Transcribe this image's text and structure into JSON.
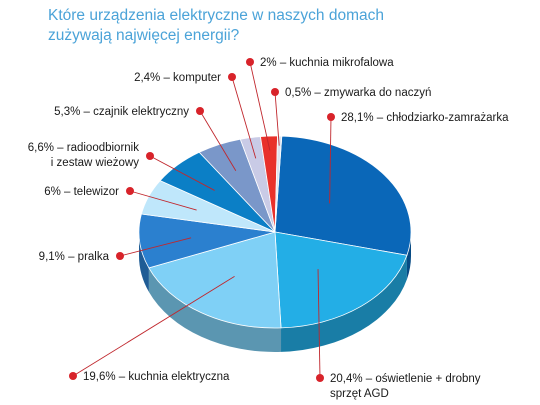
{
  "chart_data": {
    "type": "pie",
    "title_lines": [
      "Które urządzenia elektryczne w naszych domach",
      "zużywają najwięcej energii?"
    ],
    "slices": [
      {
        "value": 28.1,
        "unit": "%",
        "label": "chłodziarko-zamrażarka",
        "text": "28,1% – chłodziarko-zamrażarka",
        "color": "#0a67b8"
      },
      {
        "value": 20.4,
        "unit": "%",
        "label": "oświetlenie + drobny sprzęt AGD",
        "text": "20,4% – oświetlenie + drobny sprzęt AGD",
        "color": "#23aee6"
      },
      {
        "value": 19.6,
        "unit": "%",
        "label": "kuchnia elektryczna",
        "text": "19,6% – kuchnia elektryczna",
        "color": "#7fd0f6"
      },
      {
        "value": 9.1,
        "unit": "%",
        "label": "pralka",
        "text": "9,1% – pralka",
        "color": "#2b80cf"
      },
      {
        "value": 6,
        "unit": "%",
        "label": "telewizor",
        "text": "6% – telewizor",
        "color": "#bfe7fb"
      },
      {
        "value": 6.6,
        "unit": "%",
        "label": "radioodbiornik i zestaw wieżowy",
        "text": "6,6% – radioodbiornik i zestaw wieżowy",
        "color": "#0b7fc6"
      },
      {
        "value": 5.3,
        "unit": "%",
        "label": "czajnik elektryczny",
        "text": "5,3% – czajnik elektryczny",
        "color": "#7a97c9"
      },
      {
        "value": 2.4,
        "unit": "%",
        "label": "komputer",
        "text": "2,4% – komputer",
        "color": "#c9cbe6"
      },
      {
        "value": 2,
        "unit": "%",
        "label": "kuchnia mikrofalowa",
        "text": "2% – kuchnia mikrofalowa",
        "color": "#e8312b"
      },
      {
        "value": 0.5,
        "unit": "%",
        "label": "zmywarka do naczyń",
        "text": "0,5% – zmywarka do naczyń",
        "color": "#dde3ef"
      }
    ],
    "label_lines": [
      [
        "28,1% – chłodziarko-zamrażarka"
      ],
      [
        "20,4% – oświetlenie + drobny",
        "sprzęt AGD"
      ],
      [
        "19,6% – kuchnia elektryczna"
      ],
      [
        "9,1% – pralka"
      ],
      [
        "6% – telewizor"
      ],
      [
        "6,6% – radioodbiornik",
        "i zestaw wieżowy"
      ],
      [
        "5,3% – czajnik elektryczny"
      ],
      [
        "2,4% – komputer"
      ],
      [
        "2% – kuchnia mikrofalowa"
      ],
      [
        "0,5% – zmywarka do naczyń"
      ]
    ],
    "marker_color": "#d8232a",
    "leader_color": "#c0272d",
    "legend": "none"
  }
}
